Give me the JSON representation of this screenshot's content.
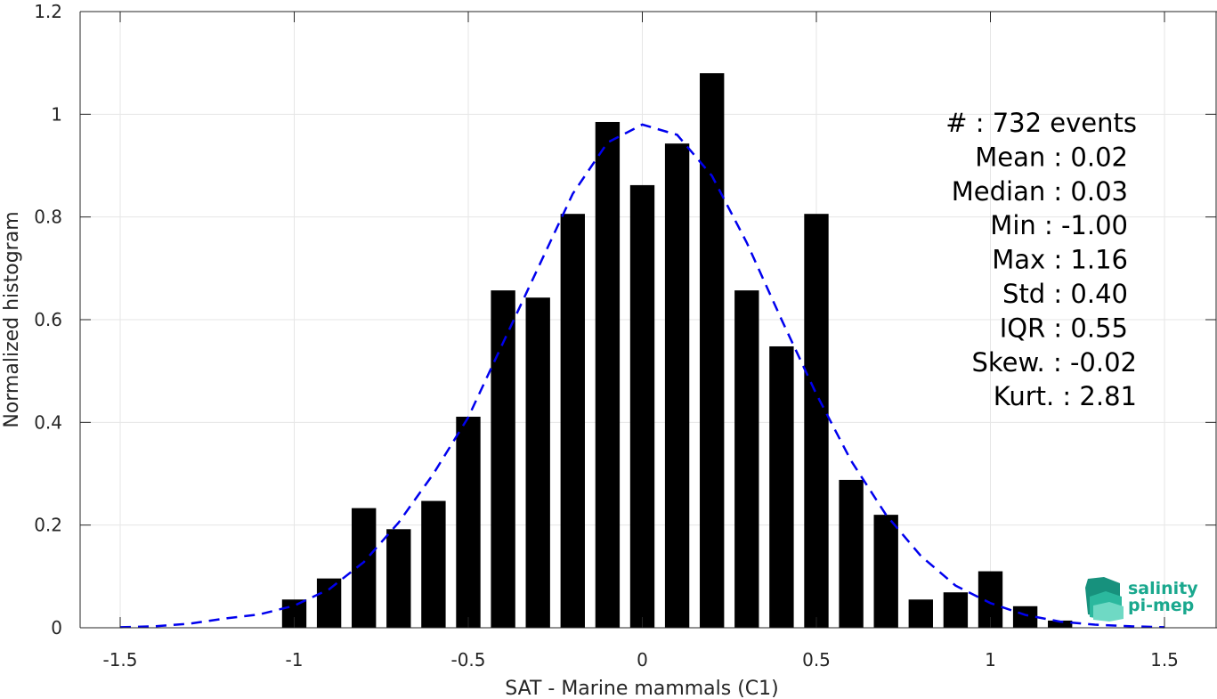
{
  "chart_data": {
    "type": "bar",
    "xlabel": "SAT - Marine mammals (C1)",
    "ylabel": "Normalized histogram",
    "xlim": [
      -1.5,
      1.5
    ],
    "ylim": [
      0,
      1.2
    ],
    "x_ticks": [
      "-1.5",
      "-1",
      "-0.5",
      "0",
      "0.5",
      "1",
      "1.5"
    ],
    "y_ticks": [
      "0",
      "0.2",
      "0.4",
      "0.6",
      "0.8",
      "1",
      "1.2"
    ],
    "grid": true,
    "bar_width": 0.07,
    "bar_color": "#000000",
    "series": [
      {
        "type": "bar",
        "x": [
          -1.0,
          -0.9,
          -0.8,
          -0.7,
          -0.6,
          -0.5,
          -0.4,
          -0.3,
          -0.2,
          -0.1,
          0.0,
          0.1,
          0.2,
          0.3,
          0.4,
          0.5,
          0.6,
          0.7,
          0.8,
          0.9,
          1.0,
          1.1,
          1.2
        ],
        "values": [
          0.055,
          0.096,
          0.233,
          0.192,
          0.247,
          0.411,
          0.657,
          0.643,
          0.806,
          0.985,
          0.862,
          0.943,
          1.08,
          0.657,
          0.548,
          0.806,
          0.288,
          0.22,
          0.055,
          0.069,
          0.11,
          0.042,
          0.014
        ]
      },
      {
        "type": "line",
        "style": "dashed",
        "color": "#0000ee",
        "x": [
          -1.5,
          -1.4,
          -1.3,
          -1.2,
          -1.1,
          -1.0,
          -0.9,
          -0.8,
          -0.7,
          -0.6,
          -0.5,
          -0.4,
          -0.3,
          -0.2,
          -0.1,
          0.0,
          0.1,
          0.2,
          0.3,
          0.4,
          0.5,
          0.6,
          0.7,
          0.8,
          0.9,
          1.0,
          1.1,
          1.2,
          1.3,
          1.4,
          1.5
        ],
        "values": [
          0.001,
          0.003,
          0.008,
          0.018,
          0.026,
          0.043,
          0.075,
          0.128,
          0.205,
          0.3,
          0.41,
          0.555,
          0.7,
          0.845,
          0.945,
          0.98,
          0.96,
          0.88,
          0.75,
          0.6,
          0.455,
          0.325,
          0.22,
          0.14,
          0.082,
          0.048,
          0.025,
          0.012,
          0.006,
          0.003,
          0.001
        ]
      }
    ],
    "annotations": [
      "#  : 732 events",
      "Mean : 0.02",
      "Median : 0.03",
      "Min : -1.00",
      "Max : 1.16",
      "Std : 0.40",
      "IQR : 0.55",
      "Skew. : -0.02",
      "Kurt. : 2.81"
    ]
  },
  "logo": {
    "line1": "salinity",
    "line2": "pi-mep",
    "color": "#1aa88e"
  }
}
